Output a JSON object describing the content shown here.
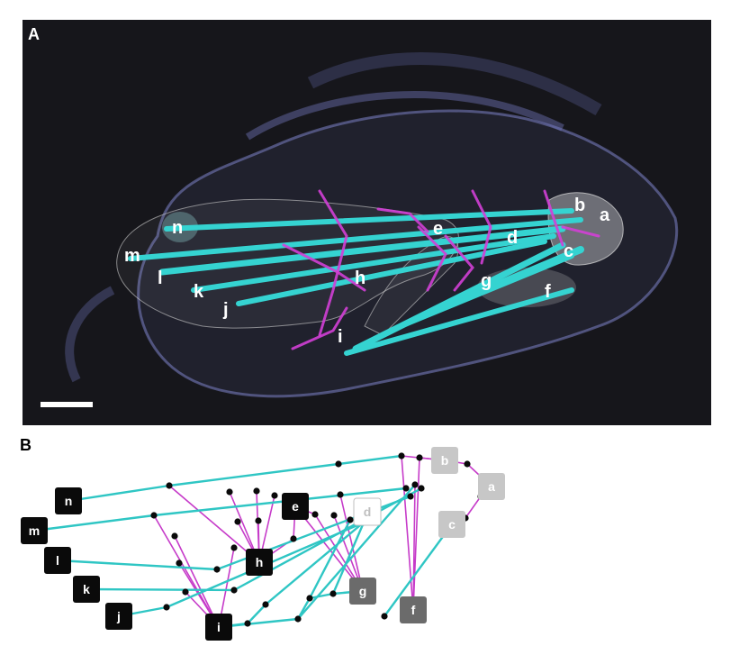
{
  "panel_a": {
    "letter": "A",
    "labels": [
      "a",
      "b",
      "c",
      "d",
      "e",
      "f",
      "g",
      "h",
      "i",
      "j",
      "k",
      "l",
      "m",
      "n"
    ],
    "colors": {
      "background": "#17171c",
      "muscle_cyan": "#35d3d1",
      "fiber_magenta": "#d13fd6",
      "body_outline": "#8a8fd6",
      "scale_bar": "#ffffff"
    }
  },
  "panel_b": {
    "letter": "B",
    "nodes": [
      {
        "id": "n",
        "label": "n",
        "style": "black"
      },
      {
        "id": "m",
        "label": "m",
        "style": "black"
      },
      {
        "id": "l",
        "label": "l",
        "style": "black"
      },
      {
        "id": "k",
        "label": "k",
        "style": "black"
      },
      {
        "id": "j",
        "label": "j",
        "style": "black"
      },
      {
        "id": "h",
        "label": "h",
        "style": "black"
      },
      {
        "id": "e",
        "label": "e",
        "style": "black"
      },
      {
        "id": "i",
        "label": "i",
        "style": "black"
      },
      {
        "id": "d",
        "label": "d",
        "style": "outline"
      },
      {
        "id": "b",
        "label": "b",
        "style": "light"
      },
      {
        "id": "a",
        "label": "a",
        "style": "light"
      },
      {
        "id": "c",
        "label": "c",
        "style": "light"
      },
      {
        "id": "g",
        "label": "g",
        "style": "dark"
      },
      {
        "id": "f",
        "label": "f",
        "style": "dark"
      }
    ],
    "colors": {
      "muscle_edge": "#2fc6c4",
      "nerve_edge": "#c63bc9",
      "black_node": "#0a0a0a",
      "dark_node": "#6b6b6b",
      "light_node": "#c7c7c7",
      "junction": "#0a0a0a"
    }
  }
}
